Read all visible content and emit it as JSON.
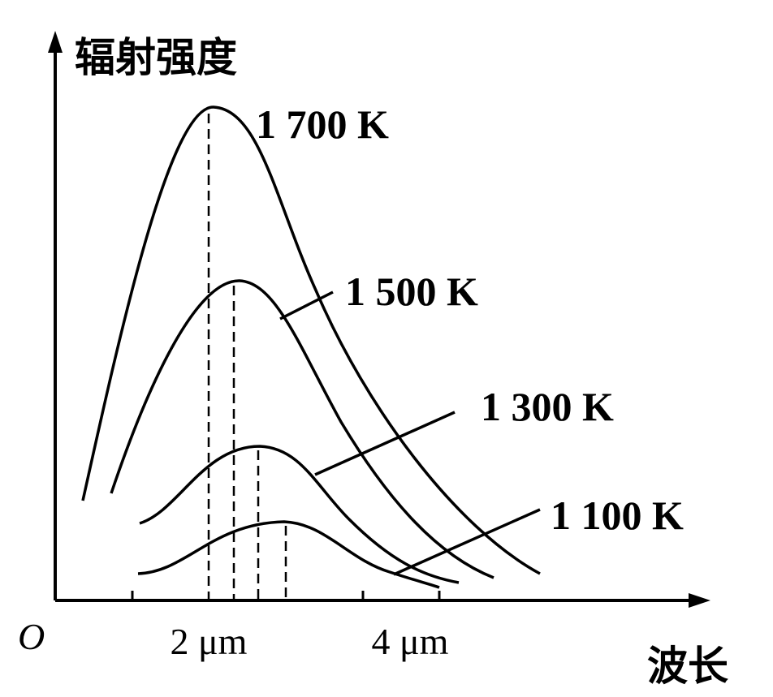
{
  "axes": {
    "y_label": "辐射强度",
    "x_label": "波长",
    "origin": "O",
    "x_ticks": [
      "2 μm",
      "4 μm"
    ]
  },
  "curves": [
    {
      "label": "1 700 K"
    },
    {
      "label": "1 500 K"
    },
    {
      "label": "1 300 K"
    },
    {
      "label": "1 100 K"
    }
  ]
}
